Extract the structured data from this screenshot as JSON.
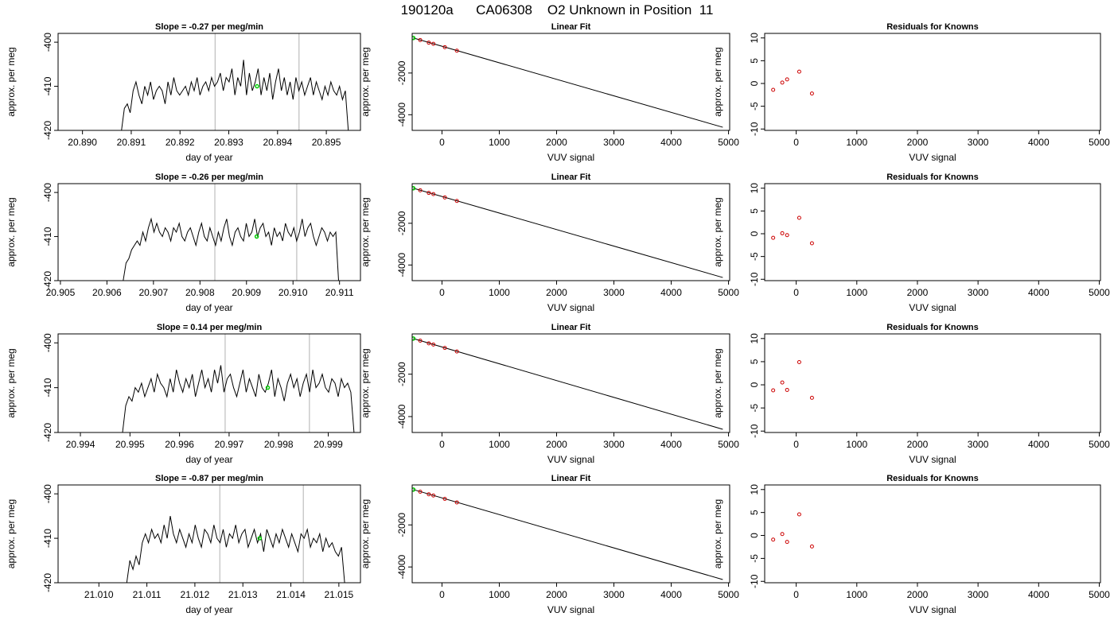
{
  "page": {
    "title": "190120a      CA06308    O2 Unknown in Position  11"
  },
  "colors": {
    "trace": "#000000",
    "marker_green": "#00cc00",
    "known_red": "#cc0000",
    "fit_line": "#000000",
    "vline": "#bebebe",
    "background": "#ffffff"
  },
  "chart_data": [
    {
      "type": "line",
      "role": "timeseries",
      "row": 0,
      "title": "Slope =  -0.27  per meg/min",
      "xlabel": "day of year",
      "ylabel": "approx. per meg",
      "xlim": [
        20.8895,
        20.8957
      ],
      "ylim": [
        -420,
        -398
      ],
      "xticks": [
        "20.890",
        "20.891",
        "20.892",
        "20.893",
        "20.894",
        "20.895"
      ],
      "yticks": [
        "-400",
        "-410",
        "-420"
      ],
      "trace_x_range": [
        20.8908,
        20.89545
      ],
      "trace_y": [
        -420,
        -415,
        -414,
        -416,
        -411,
        -409,
        -412,
        -414,
        -410,
        -412,
        -409,
        -413,
        -411,
        -410,
        -411,
        -414,
        -409,
        -412,
        -408,
        -411,
        -412,
        -411,
        -410,
        -412,
        -409,
        -411,
        -408,
        -412,
        -410,
        -409,
        -411,
        -408,
        -410,
        -409,
        -407,
        -411,
        -408,
        -409,
        -406,
        -412,
        -408,
        -410,
        -404,
        -412,
        -407,
        -411,
        -409,
        -406,
        -412,
        -408,
        -411,
        -407,
        -413,
        -409,
        -406,
        -411,
        -408,
        -412,
        -409,
        -413,
        -408,
        -411,
        -409,
        -412,
        -410,
        -408,
        -412,
        -409,
        -411,
        -413,
        -410,
        -412,
        -409,
        -411,
        -412,
        -410,
        -413,
        -411,
        -420
      ],
      "vlines_x": [
        20.89272,
        20.89444
      ],
      "marker": {
        "x": 20.89358,
        "y": -410
      }
    },
    {
      "type": "line",
      "role": "fit",
      "row": 0,
      "title": "Linear Fit",
      "xlabel": "VUV signal",
      "ylabel": "approx. per meg",
      "xlim": [
        -520,
        5020
      ],
      "ylim": [
        -4750,
        -100
      ],
      "xticks": [
        "0",
        "1000",
        "2000",
        "3000",
        "4000",
        "5000"
      ],
      "yticks": [
        "-2000",
        "-4000"
      ],
      "fit_line": {
        "x": [
          -500,
          4900
        ],
        "y": [
          -320,
          -4600
        ]
      },
      "knowns": [
        {
          "x": -500,
          "y": -320
        },
        {
          "x": -380,
          "y": -420
        },
        {
          "x": -230,
          "y": -545
        },
        {
          "x": -150,
          "y": -600
        },
        {
          "x": 50,
          "y": -760
        },
        {
          "x": 260,
          "y": -930
        }
      ],
      "green_point": {
        "x": -500,
        "y": -320
      }
    },
    {
      "type": "scatter",
      "role": "residuals",
      "row": 0,
      "title": "Residuals for Knowns",
      "xlabel": "VUV signal",
      "ylabel": "approx. per meg",
      "xlim": [
        -520,
        5020
      ],
      "ylim": [
        -10.3,
        11
      ],
      "xticks": [
        "0",
        "1000",
        "2000",
        "3000",
        "4000",
        "5000"
      ],
      "yticks": [
        "10",
        "5",
        "0",
        "-5",
        "-10"
      ],
      "points": [
        {
          "x": -380,
          "y": -1.4
        },
        {
          "x": -230,
          "y": 0.2
        },
        {
          "x": -150,
          "y": 0.9
        },
        {
          "x": 50,
          "y": 2.6
        },
        {
          "x": 260,
          "y": -2.2
        }
      ]
    },
    {
      "type": "line",
      "role": "timeseries",
      "row": 1,
      "title": "Slope =  -0.26  per meg/min",
      "xlabel": "day of year",
      "ylabel": "approx. per meg",
      "xlim": [
        20.90495,
        20.91145
      ],
      "ylim": [
        -420,
        -398
      ],
      "xticks": [
        "20.905",
        "20.906",
        "20.907",
        "20.908",
        "20.909",
        "20.910",
        "20.911"
      ],
      "yticks": [
        "-400",
        "-410",
        "-420"
      ],
      "trace_x_range": [
        20.90635,
        20.91098
      ],
      "trace_y": [
        -420,
        -416,
        -415,
        -413,
        -412,
        -411,
        -412,
        -409,
        -411,
        -408,
        -406,
        -409,
        -407,
        -409,
        -410,
        -408,
        -409,
        -411,
        -408,
        -409,
        -407,
        -410,
        -411,
        -409,
        -408,
        -410,
        -412,
        -409,
        -407,
        -410,
        -411,
        -408,
        -410,
        -412,
        -409,
        -411,
        -408,
        -406,
        -410,
        -412,
        -409,
        -408,
        -410,
        -411,
        -407,
        -410,
        -409,
        -406,
        -410,
        -408,
        -407,
        -410,
        -409,
        -412,
        -408,
        -410,
        -409,
        -411,
        -407,
        -409,
        -410,
        -408,
        -411,
        -409,
        -406,
        -410,
        -408,
        -407,
        -410,
        -412,
        -410,
        -408,
        -409,
        -411,
        -409,
        -410,
        -409,
        -420
      ],
      "vlines_x": [
        20.90832,
        20.91008
      ],
      "marker": {
        "x": 20.90922,
        "y": -410
      }
    },
    {
      "type": "line",
      "role": "fit",
      "row": 1,
      "title": "Linear Fit",
      "xlabel": "VUV signal",
      "ylabel": "approx. per meg",
      "xlim": [
        -520,
        5020
      ],
      "ylim": [
        -4750,
        -100
      ],
      "xticks": [
        "0",
        "1000",
        "2000",
        "3000",
        "4000",
        "5000"
      ],
      "yticks": [
        "-2000",
        "-4000"
      ],
      "fit_line": {
        "x": [
          -500,
          4900
        ],
        "y": [
          -320,
          -4600
        ]
      },
      "knowns": [
        {
          "x": -500,
          "y": -320
        },
        {
          "x": -380,
          "y": -420
        },
        {
          "x": -230,
          "y": -545
        },
        {
          "x": -150,
          "y": -600
        },
        {
          "x": 50,
          "y": -760
        },
        {
          "x": 260,
          "y": -930
        }
      ],
      "green_point": {
        "x": -500,
        "y": -320
      }
    },
    {
      "type": "scatter",
      "role": "residuals",
      "row": 1,
      "title": "Residuals for Knowns",
      "xlabel": "VUV signal",
      "ylabel": "approx. per meg",
      "xlim": [
        -520,
        5020
      ],
      "ylim": [
        -10.3,
        11
      ],
      "xticks": [
        "0",
        "1000",
        "2000",
        "3000",
        "4000",
        "5000"
      ],
      "yticks": [
        "10",
        "5",
        "0",
        "-5",
        "-10"
      ],
      "points": [
        {
          "x": -380,
          "y": -0.9
        },
        {
          "x": -230,
          "y": 0.1
        },
        {
          "x": -150,
          "y": -0.3
        },
        {
          "x": 50,
          "y": 3.5
        },
        {
          "x": 260,
          "y": -2.1
        }
      ]
    },
    {
      "type": "line",
      "role": "timeseries",
      "row": 2,
      "title": "Slope =  0.14  per meg/min",
      "xlabel": "day of year",
      "ylabel": "approx. per meg",
      "xlim": [
        20.99355,
        20.99965
      ],
      "ylim": [
        -420,
        -398
      ],
      "xticks": [
        "20.994",
        "20.995",
        "20.996",
        "20.997",
        "20.998",
        "20.999"
      ],
      "yticks": [
        "-400",
        "-410",
        "-420"
      ],
      "trace_x_range": [
        20.99485,
        20.99952
      ],
      "trace_y": [
        -420,
        -414,
        -412,
        -413,
        -410,
        -411,
        -409,
        -412,
        -410,
        -408,
        -411,
        -407,
        -409,
        -410,
        -412,
        -408,
        -411,
        -406,
        -409,
        -411,
        -408,
        -410,
        -407,
        -412,
        -409,
        -406,
        -410,
        -408,
        -411,
        -406,
        -409,
        -405,
        -411,
        -408,
        -407,
        -410,
        -412,
        -409,
        -406,
        -411,
        -408,
        -410,
        -412,
        -407,
        -410,
        -411,
        -409,
        -406,
        -412,
        -408,
        -410,
        -413,
        -409,
        -407,
        -410,
        -408,
        -412,
        -409,
        -407,
        -411,
        -406,
        -410,
        -409,
        -407,
        -410,
        -411,
        -408,
        -409,
        -412,
        -408,
        -410,
        -409,
        -411,
        -420
      ],
      "vlines_x": [
        20.99692,
        20.99862
      ],
      "marker": {
        "x": 20.99778,
        "y": -410
      }
    },
    {
      "type": "line",
      "role": "fit",
      "row": 2,
      "title": "Linear Fit",
      "xlabel": "VUV signal",
      "ylabel": "approx. per meg",
      "xlim": [
        -520,
        5020
      ],
      "ylim": [
        -4750,
        -100
      ],
      "xticks": [
        "0",
        "1000",
        "2000",
        "3000",
        "4000",
        "5000"
      ],
      "yticks": [
        "-2000",
        "-4000"
      ],
      "fit_line": {
        "x": [
          -500,
          4900
        ],
        "y": [
          -320,
          -4600
        ]
      },
      "knowns": [
        {
          "x": -500,
          "y": -320
        },
        {
          "x": -380,
          "y": -420
        },
        {
          "x": -230,
          "y": -545
        },
        {
          "x": -150,
          "y": -600
        },
        {
          "x": 50,
          "y": -760
        },
        {
          "x": 260,
          "y": -930
        }
      ],
      "green_point": {
        "x": -500,
        "y": -320
      }
    },
    {
      "type": "scatter",
      "role": "residuals",
      "row": 2,
      "title": "Residuals for Knowns",
      "xlabel": "VUV signal",
      "ylabel": "approx. per meg",
      "xlim": [
        -520,
        5020
      ],
      "ylim": [
        -10.3,
        11
      ],
      "xticks": [
        "0",
        "1000",
        "2000",
        "3000",
        "4000",
        "5000"
      ],
      "yticks": [
        "10",
        "5",
        "0",
        "-5",
        "-10"
      ],
      "points": [
        {
          "x": -380,
          "y": -1.2
        },
        {
          "x": -230,
          "y": 0.5
        },
        {
          "x": -150,
          "y": -1.1
        },
        {
          "x": 50,
          "y": 4.9
        },
        {
          "x": 260,
          "y": -2.8
        }
      ]
    },
    {
      "type": "line",
      "role": "timeseries",
      "row": 3,
      "title": "Slope =  -0.87  per meg/min",
      "xlabel": "day of year",
      "ylabel": "approx. per meg",
      "xlim": [
        21.00915,
        21.01545
      ],
      "ylim": [
        -420,
        -398
      ],
      "xticks": [
        "21.010",
        "21.011",
        "21.012",
        "21.013",
        "21.014",
        "21.015"
      ],
      "yticks": [
        "-400",
        "-410",
        "-420"
      ],
      "trace_x_range": [
        21.01058,
        21.01512
      ],
      "trace_y": [
        -420,
        -415,
        -417,
        -414,
        -416,
        -411,
        -409,
        -411,
        -408,
        -410,
        -409,
        -411,
        -407,
        -410,
        -405,
        -409,
        -411,
        -408,
        -410,
        -412,
        -409,
        -411,
        -407,
        -410,
        -412,
        -408,
        -409,
        -411,
        -407,
        -410,
        -411,
        -408,
        -412,
        -409,
        -410,
        -407,
        -411,
        -409,
        -408,
        -412,
        -410,
        -408,
        -411,
        -409,
        -413,
        -408,
        -410,
        -412,
        -409,
        -411,
        -408,
        -410,
        -412,
        -409,
        -411,
        -413,
        -409,
        -410,
        -408,
        -412,
        -410,
        -411,
        -409,
        -413,
        -410,
        -412,
        -411,
        -413,
        -414,
        -412,
        -420
      ],
      "vlines_x": [
        21.01252,
        21.01426
      ],
      "marker": {
        "x": 21.01335,
        "y": -410
      }
    },
    {
      "type": "line",
      "role": "fit",
      "row": 3,
      "title": "Linear Fit",
      "xlabel": "VUV signal",
      "ylabel": "approx. per meg",
      "xlim": [
        -520,
        5020
      ],
      "ylim": [
        -4750,
        -100
      ],
      "xticks": [
        "0",
        "1000",
        "2000",
        "3000",
        "4000",
        "5000"
      ],
      "yticks": [
        "-2000",
        "-4000"
      ],
      "fit_line": {
        "x": [
          -500,
          4900
        ],
        "y": [
          -320,
          -4600
        ]
      },
      "knowns": [
        {
          "x": -500,
          "y": -320
        },
        {
          "x": -380,
          "y": -420
        },
        {
          "x": -230,
          "y": -545
        },
        {
          "x": -150,
          "y": -600
        },
        {
          "x": 50,
          "y": -760
        },
        {
          "x": 260,
          "y": -930
        }
      ],
      "green_point": {
        "x": -500,
        "y": -320
      }
    },
    {
      "type": "scatter",
      "role": "residuals",
      "row": 3,
      "title": "Residuals for Knowns",
      "xlabel": "VUV signal",
      "ylabel": "approx. per meg",
      "xlim": [
        -520,
        5020
      ],
      "ylim": [
        -10.3,
        11
      ],
      "xticks": [
        "0",
        "1000",
        "2000",
        "3000",
        "4000",
        "5000"
      ],
      "yticks": [
        "10",
        "5",
        "0",
        "-5",
        "-10"
      ],
      "points": [
        {
          "x": -380,
          "y": -0.9
        },
        {
          "x": -230,
          "y": 0.3
        },
        {
          "x": -150,
          "y": -1.4
        },
        {
          "x": 50,
          "y": 4.6
        },
        {
          "x": 260,
          "y": -2.4
        }
      ]
    }
  ]
}
